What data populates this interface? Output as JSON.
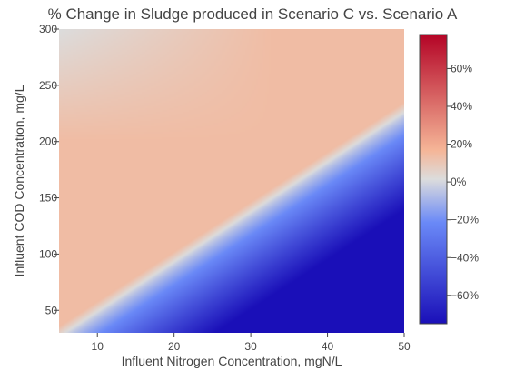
{
  "chart_data": {
    "type": "heatmap",
    "title": "% Change in Sludge produced in Scenario C vs. Scenario A",
    "xlabel": "Influent Nitrogen Concentration, mgN/L",
    "ylabel": "Influent COD Concentration, mg/L",
    "xlim": [
      5,
      50
    ],
    "ylim": [
      30,
      300
    ],
    "x_ticks": [
      10,
      20,
      30,
      40,
      50
    ],
    "x_tick_labels": [
      "10",
      "20",
      "30",
      "40",
      "50"
    ],
    "y_ticks": [
      50,
      100,
      150,
      200,
      250,
      300
    ],
    "y_tick_labels": [
      "50",
      "100",
      "150",
      "200",
      "250",
      "300"
    ],
    "zlim": [
      -75,
      78
    ],
    "colorbar_ticks": [
      60,
      40,
      20,
      0,
      -20,
      -40,
      -60
    ],
    "colorbar_tick_labels": [
      "60%",
      "40%",
      "20%",
      "0%",
      "−20%",
      "−40%",
      "−60%"
    ],
    "colorscale": [
      [
        0.0,
        "#1a0fb8"
      ],
      [
        0.35,
        "#6a89f7"
      ],
      [
        0.5,
        "#dcdcdc"
      ],
      [
        0.6,
        "#f5b597"
      ],
      [
        1.0,
        "#b40426"
      ]
    ],
    "zero_change_line": [
      [
        6,
        30
      ],
      [
        50,
        225
      ]
    ],
    "surface_samples": [
      {
        "x": 5,
        "y": 300,
        "z": 0
      },
      {
        "x": 50,
        "y": 300,
        "z": 14
      },
      {
        "x": 20,
        "y": 100,
        "z": 12
      },
      {
        "x": 30,
        "y": 150,
        "z": 11
      },
      {
        "x": 50,
        "y": 150,
        "z": -12
      },
      {
        "x": 50,
        "y": 100,
        "z": -40
      },
      {
        "x": 50,
        "y": 30,
        "z": -75
      },
      {
        "x": 40,
        "y": 60,
        "z": -45
      }
    ]
  }
}
